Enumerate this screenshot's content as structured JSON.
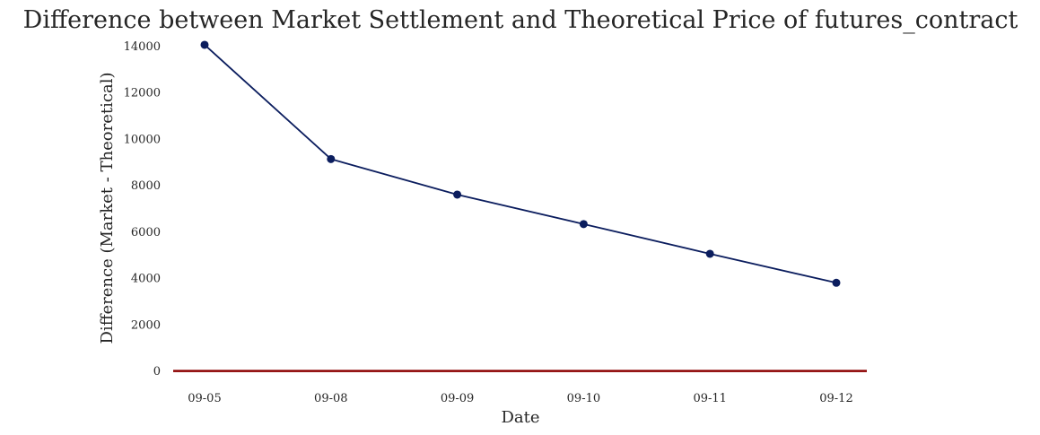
{
  "chart_data": {
    "type": "line",
    "title": "Difference between Market Settlement and Theoretical Price of futures_contract",
    "xlabel": "Date",
    "ylabel": "Difference (Market - Theoretical)",
    "categories": [
      "09-05",
      "09-08",
      "09-09",
      "09-10",
      "09-11",
      "09-12"
    ],
    "series": [
      {
        "values": [
          14050,
          9130,
          7600,
          6330,
          5050,
          3800
        ],
        "color": "#0b1d5e"
      }
    ],
    "reference_line": {
      "y": 0,
      "color": "#8b0000"
    },
    "ylim": [
      -700,
      14300
    ],
    "yticks": [
      0,
      2000,
      4000,
      6000,
      8000,
      10000,
      12000,
      14000
    ],
    "grid": false
  }
}
